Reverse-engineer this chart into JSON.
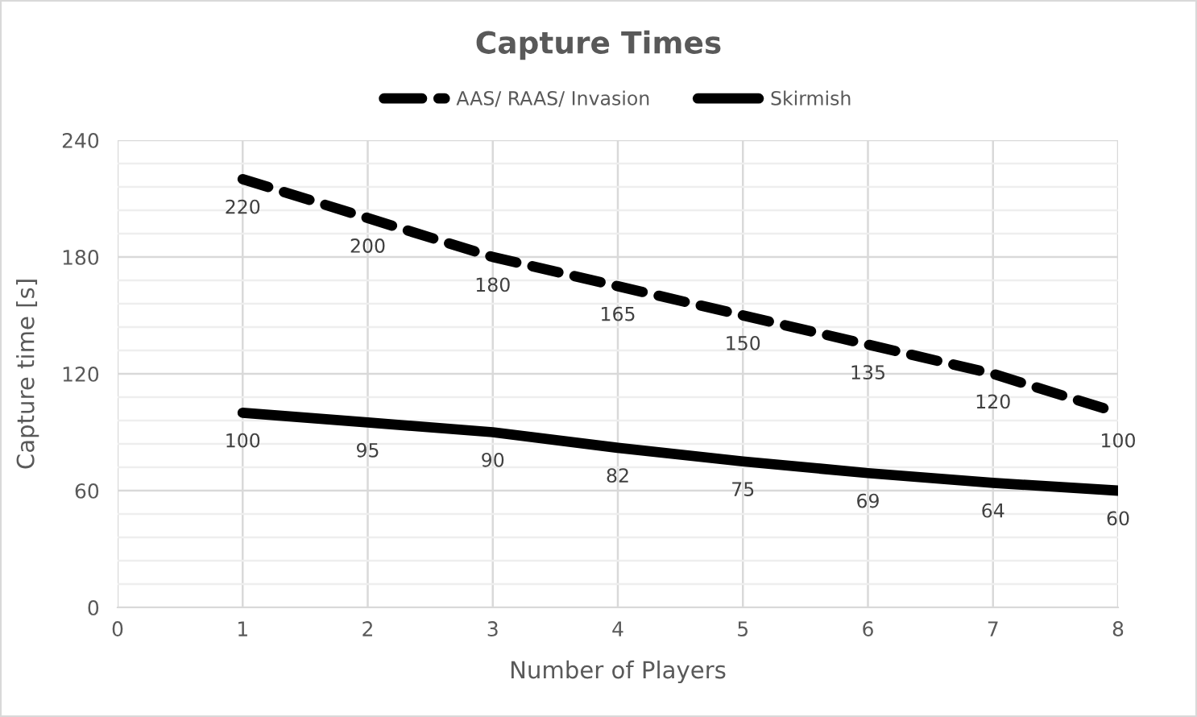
{
  "chart_data": {
    "type": "line",
    "title": "Capture Times",
    "xlabel": "Number of Players",
    "ylabel": "Capture time [s]",
    "x": [
      1,
      2,
      3,
      4,
      5,
      6,
      7,
      8
    ],
    "series": [
      {
        "name": "AAS/ RAAS/ Invasion",
        "color": "#000000",
        "line_style": "dashed",
        "values": [
          220,
          200,
          180,
          165,
          150,
          135,
          120,
          100
        ]
      },
      {
        "name": "Skirmish",
        "color": "#000000",
        "line_style": "solid",
        "values": [
          100,
          95,
          90,
          82,
          75,
          69,
          64,
          60
        ]
      }
    ],
    "xlim": [
      0,
      8
    ],
    "xticks": [
      0,
      1,
      2,
      3,
      4,
      5,
      6,
      7,
      8
    ],
    "ylim": [
      0,
      240
    ],
    "yticks": [
      0,
      {
        "value": 12,
        "label": null
      },
      {
        "value": 24,
        "label": null
      },
      {
        "value": 36,
        "label": null
      },
      {
        "value": 48,
        "label": null
      },
      60,
      {
        "value": 72,
        "label": null
      },
      {
        "value": 84,
        "label": null
      },
      {
        "value": 96,
        "label": null
      },
      {
        "value": 108,
        "label": null
      },
      120,
      {
        "value": 132,
        "label": null
      },
      {
        "value": 144,
        "label": null
      },
      {
        "value": 156,
        "label": null
      },
      {
        "value": 168,
        "label": null
      },
      180,
      {
        "value": 192,
        "label": null
      },
      {
        "value": 204,
        "label": null
      },
      {
        "value": 216,
        "label": null
      },
      {
        "value": 228,
        "label": null
      },
      240
    ],
    "grid": true,
    "legend": "top",
    "data_labels": true
  }
}
